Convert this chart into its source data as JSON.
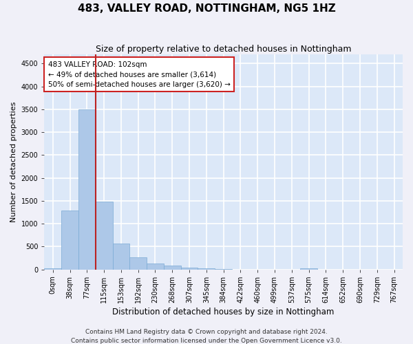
{
  "title1": "483, VALLEY ROAD, NOTTINGHAM, NG5 1HZ",
  "title2": "Size of property relative to detached houses in Nottingham",
  "xlabel": "Distribution of detached houses by size in Nottingham",
  "ylabel": "Number of detached properties",
  "bin_labels": [
    "0sqm",
    "38sqm",
    "77sqm",
    "115sqm",
    "153sqm",
    "192sqm",
    "230sqm",
    "268sqm",
    "307sqm",
    "345sqm",
    "384sqm",
    "422sqm",
    "460sqm",
    "499sqm",
    "537sqm",
    "575sqm",
    "614sqm",
    "652sqm",
    "690sqm",
    "729sqm",
    "767sqm"
  ],
  "bar_values": [
    30,
    1280,
    3500,
    1480,
    570,
    270,
    135,
    80,
    45,
    20,
    5,
    0,
    0,
    0,
    0,
    30,
    0,
    0,
    0,
    0,
    0
  ],
  "bar_color": "#adc8e8",
  "bar_edge_color": "#7aaad4",
  "vline_color": "#bb2222",
  "annotation_text": "483 VALLEY ROAD: 102sqm\n← 49% of detached houses are smaller (3,614)\n50% of semi-detached houses are larger (3,620) →",
  "annotation_box_color": "#ffffff",
  "annotation_box_edge": "#cc2222",
  "ylim": [
    0,
    4700
  ],
  "yticks": [
    0,
    500,
    1000,
    1500,
    2000,
    2500,
    3000,
    3500,
    4000,
    4500
  ],
  "background_color": "#dce8f8",
  "grid_color": "#ffffff",
  "footer1": "Contains HM Land Registry data © Crown copyright and database right 2024.",
  "footer2": "Contains public sector information licensed under the Open Government Licence v3.0.",
  "title1_fontsize": 11,
  "title2_fontsize": 9,
  "xlabel_fontsize": 8.5,
  "ylabel_fontsize": 8,
  "tick_fontsize": 7,
  "annotation_fontsize": 7.5,
  "footer_fontsize": 6.5
}
